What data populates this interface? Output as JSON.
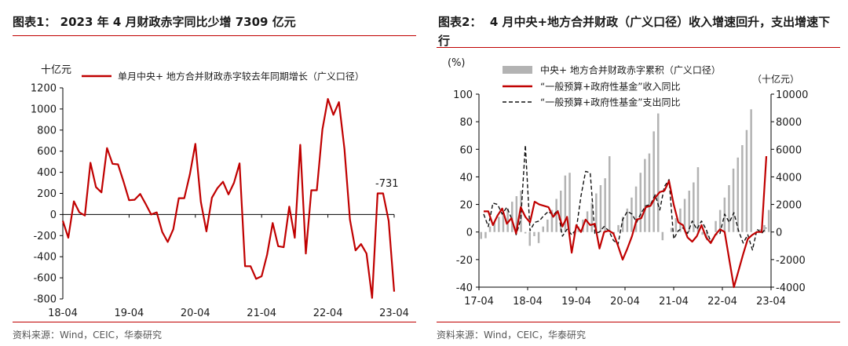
{
  "left": {
    "title": "图表1： 2023 年 4 月财政赤字同比少增 7309 亿元",
    "source": "资料来源：Wind，CEIC，华泰研究",
    "chart_data": {
      "type": "line",
      "unit_label": "十亿元",
      "series": [
        {
          "name": "单月中央+ 地方合并财政赤字较去年同期增长（广义口径）",
          "color": "#c00000",
          "values": [
            -60,
            -220,
            125,
            20,
            -10,
            490,
            260,
            210,
            630,
            480,
            475,
            310,
            135,
            140,
            195,
            100,
            0,
            20,
            -165,
            -260,
            -140,
            155,
            155,
            380,
            670,
            120,
            -160,
            160,
            250,
            310,
            190,
            300,
            485,
            -490,
            -490,
            -610,
            -585,
            -380,
            -80,
            -300,
            -310,
            75,
            -220,
            660,
            -370,
            230,
            230,
            805,
            1095,
            945,
            1065,
            620,
            -50,
            -340,
            -280,
            -370,
            -790,
            200,
            200,
            -60,
            -731
          ]
        }
      ],
      "x_tick_labels": [
        "18-04",
        "19-04",
        "20-04",
        "21-04",
        "22-04",
        "23-04"
      ],
      "y_ticks": [
        -800,
        -600,
        -400,
        -200,
        0,
        200,
        400,
        600,
        800,
        1000,
        1200
      ],
      "ylim": [
        -800,
        1200
      ],
      "annotation": "-731"
    }
  },
  "right": {
    "title": "图表2：  4 月中央+地方合并财政（广义口径）收入增速回升，支出增速下行",
    "source": "资料来源：Wind，CEIC，华泰研究",
    "chart_data": {
      "type": "bar",
      "left_axis_label": "(%)",
      "right_axis_label": "（十亿元）",
      "ylim_left": [
        -40,
        100
      ],
      "ylim_right": [
        -4000,
        10000
      ],
      "y_ticks_left": [
        -40,
        -20,
        0,
        20,
        40,
        60,
        80,
        100
      ],
      "y_ticks_right": [
        -4000,
        -2000,
        0,
        2000,
        4000,
        6000,
        8000,
        10000
      ],
      "x_tick_labels": [
        "17-04",
        "18-04",
        "19-04",
        "20-04",
        "21-04",
        "22-04",
        "23-04"
      ],
      "series": [
        {
          "name": "中央+ 地方合并财政赤字累积（广义口径）",
          "type": "bar",
          "axis": "right",
          "color": "#b3b3b3",
          "values": [
            -500,
            -450,
            400,
            700,
            1100,
            1400,
            1700,
            2200,
            2600,
            3000,
            -100,
            -1000,
            -300,
            -800,
            400,
            900,
            1600,
            2400,
            3000,
            4100,
            4300,
            -200,
            400,
            900,
            1500,
            2100,
            2800,
            3400,
            3900,
            5500,
            -100,
            500,
            1100,
            1700,
            2500,
            3300,
            4300,
            5300,
            5700,
            7300,
            8600,
            -600,
            0,
            300,
            1000,
            1700,
            2400,
            3000,
            3600,
            4700,
            -200,
            -600,
            0,
            800,
            1600,
            2500,
            3400,
            4600,
            5400,
            6300,
            7400,
            8900,
            -200,
            200,
            500,
            1600
          ]
        },
        {
          "name": "“一般预算+政府性基金”收入同比",
          "type": "line",
          "axis": "left",
          "color": "#c00000",
          "values": [
            15,
            15,
            5,
            12,
            17,
            6,
            10,
            -1,
            18,
            11,
            7,
            22,
            20,
            19,
            18,
            11,
            15,
            4,
            11,
            -15,
            5,
            0,
            9,
            5,
            6,
            -12,
            0,
            1,
            -1,
            -10,
            -20,
            -12,
            -3,
            9,
            10,
            18,
            19,
            25,
            29,
            30,
            37,
            20,
            7,
            5,
            -4,
            -7,
            -3,
            5,
            -4,
            -8,
            -2,
            2,
            0,
            -20,
            -40,
            -28,
            -16,
            -5,
            -2,
            0,
            0,
            55
          ]
        },
        {
          "name": "“一般预算+政府性基金”支出同比",
          "type": "line",
          "axis": "left",
          "color": "#111111",
          "values": [
            13,
            4,
            21,
            20,
            13,
            18,
            10,
            -2,
            9,
            63,
            1,
            7,
            8,
            12,
            15,
            12,
            16,
            -3,
            2,
            -2,
            2,
            26,
            44,
            43,
            -1,
            0,
            4,
            1,
            -6,
            -9,
            9,
            15,
            13,
            7,
            14,
            19,
            20,
            27,
            16,
            33,
            38,
            -5,
            1,
            3,
            -1,
            8,
            2,
            8,
            2,
            -7,
            -2,
            -1,
            13,
            7,
            14,
            1,
            -8,
            -2,
            -13,
            2,
            -1,
            3
          ]
        }
      ]
    }
  }
}
